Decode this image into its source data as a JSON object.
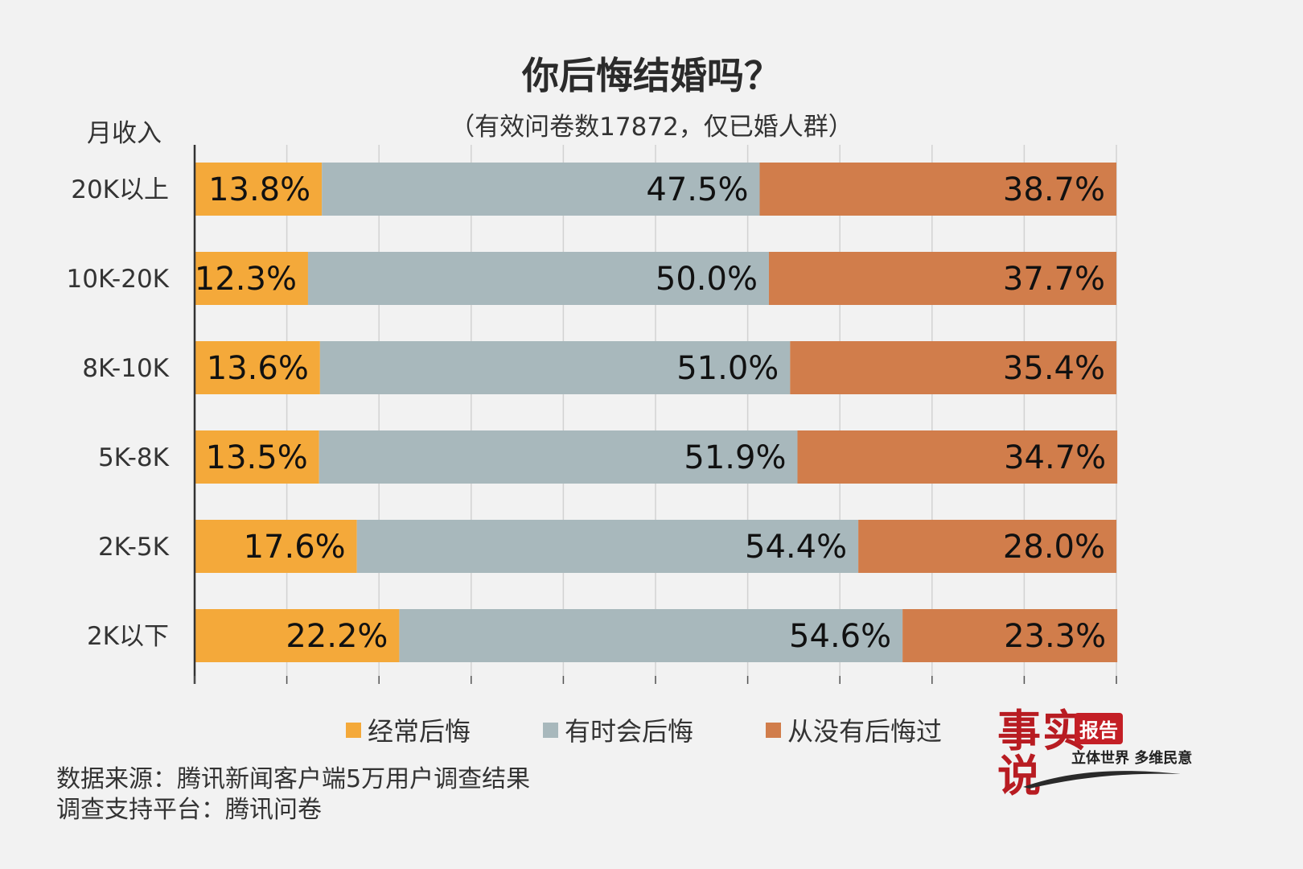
{
  "chart_data": {
    "type": "bar",
    "orientation": "horizontal",
    "stacked": true,
    "title": "你后悔结婚吗？",
    "subtitle": "（有效问卷数17872，仅已婚人群）",
    "ylabel": "月收入",
    "categories": [
      "20K以上",
      "10K-20K",
      "8K-10K",
      "5K-8K",
      "2K-5K",
      "2K以下"
    ],
    "series": [
      {
        "name": "经常后悔",
        "color": "#f4a93a",
        "values": [
          13.8,
          12.3,
          13.6,
          13.5,
          17.6,
          22.2
        ]
      },
      {
        "name": "有时会后悔",
        "color": "#a8b8bc",
        "values": [
          47.5,
          50.0,
          51.0,
          51.9,
          54.4,
          54.6
        ]
      },
      {
        "name": "从没有后悔过",
        "color": "#d17d4b",
        "values": [
          38.7,
          37.7,
          35.4,
          34.7,
          28.0,
          23.3
        ]
      }
    ],
    "xlim": [
      0,
      100
    ],
    "grid": true,
    "legend_position": "bottom"
  },
  "footer": {
    "source_line1": "数据来源：腾讯新闻客户端5万用户调查结果",
    "source_line2": "调查支持平台：腾讯问卷"
  },
  "logo": {
    "brand_chars": "事实\n说",
    "badge": "报告",
    "tagline": "立体世界 多维民意"
  }
}
